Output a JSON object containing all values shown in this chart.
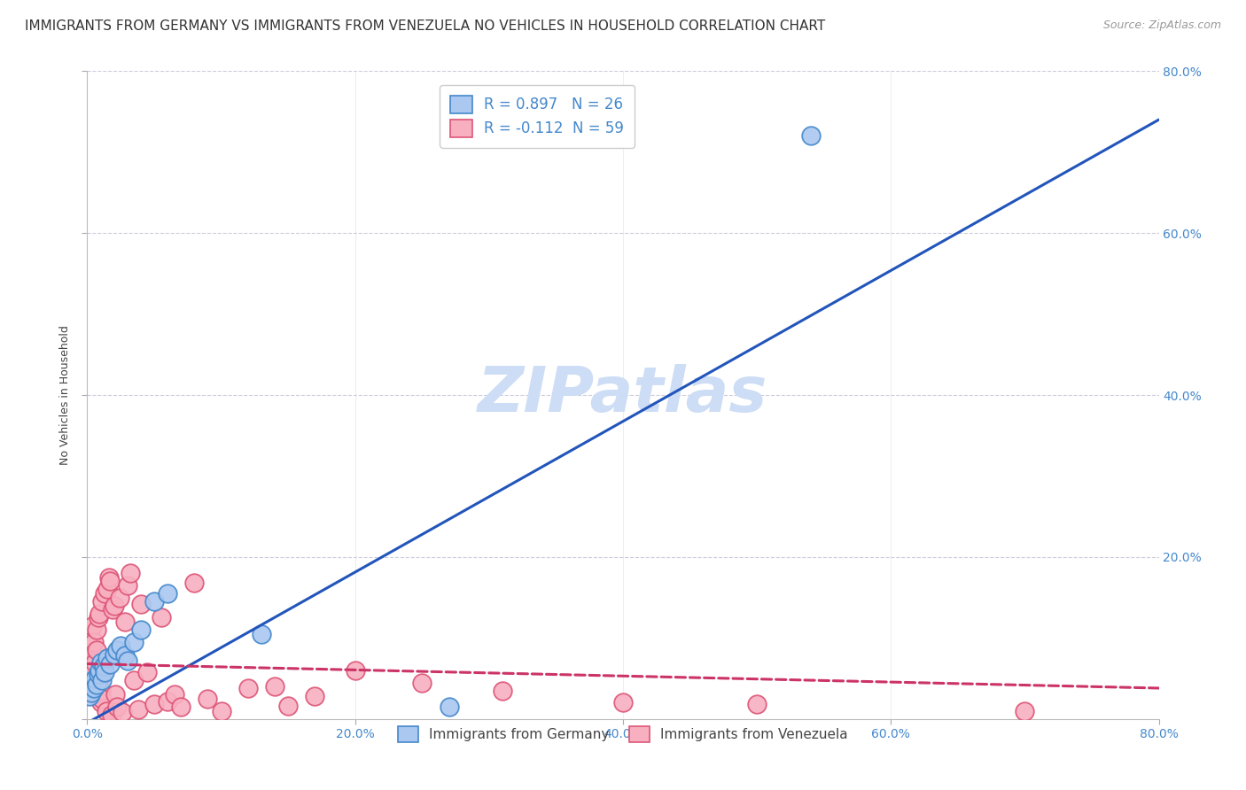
{
  "title": "IMMIGRANTS FROM GERMANY VS IMMIGRANTS FROM VENEZUELA NO VEHICLES IN HOUSEHOLD CORRELATION CHART",
  "source": "Source: ZipAtlas.com",
  "ylabel": "No Vehicles in Household",
  "xlim": [
    0.0,
    0.8
  ],
  "ylim": [
    0.0,
    0.8
  ],
  "ytick_positions": [
    0.0,
    0.2,
    0.4,
    0.6,
    0.8
  ],
  "ytick_labels": [
    "",
    "20.0%",
    "40.0%",
    "60.0%",
    "80.0%"
  ],
  "xtick_positions": [
    0.0,
    0.2,
    0.4,
    0.6,
    0.8
  ],
  "xtick_labels": [
    "0.0%",
    "20.0%",
    "40.0%",
    "60.0%",
    "80.0%"
  ],
  "germany_color": "#aac8f0",
  "germany_edge_color": "#4488cc",
  "venezuela_color": "#f8b0c0",
  "venezuela_edge_color": "#dd5577",
  "germany_line_color": "#2255bb",
  "venezuela_line_color": "#cc3366",
  "R_germany": 0.897,
  "N_germany": 26,
  "R_venezuela": -0.112,
  "N_venezuela": 59,
  "watermark": "ZIPatlas",
  "watermark_color": "#ccddf5",
  "legend_label_germany": "Immigrants from Germany",
  "legend_label_venezuela": "Immigrants from Venezuela",
  "grid_color": "#ccccdd",
  "background_color": "#ffffff",
  "title_fontsize": 11,
  "axis_label_fontsize": 9,
  "tick_fontsize": 10,
  "source_fontsize": 9,
  "watermark_fontsize": 52,
  "tick_color": "#4488cc",
  "germany_x": [
    0.002,
    0.003,
    0.004,
    0.005,
    0.006,
    0.007,
    0.008,
    0.009,
    0.01,
    0.011,
    0.012,
    0.013,
    0.015,
    0.017,
    0.02,
    0.022,
    0.025,
    0.028,
    0.03,
    0.035,
    0.04,
    0.05,
    0.06,
    0.13,
    0.27,
    0.54
  ],
  "germany_y": [
    0.028,
    0.032,
    0.045,
    0.038,
    0.05,
    0.042,
    0.055,
    0.06,
    0.07,
    0.048,
    0.065,
    0.058,
    0.075,
    0.068,
    0.08,
    0.085,
    0.09,
    0.078,
    0.072,
    0.095,
    0.11,
    0.145,
    0.155,
    0.105,
    0.015,
    0.72
  ],
  "venezuela_x": [
    0.001,
    0.002,
    0.002,
    0.003,
    0.003,
    0.004,
    0.004,
    0.005,
    0.005,
    0.006,
    0.006,
    0.007,
    0.007,
    0.008,
    0.008,
    0.009,
    0.009,
    0.01,
    0.01,
    0.011,
    0.011,
    0.012,
    0.013,
    0.014,
    0.015,
    0.016,
    0.017,
    0.018,
    0.019,
    0.02,
    0.021,
    0.022,
    0.024,
    0.026,
    0.028,
    0.03,
    0.032,
    0.035,
    0.038,
    0.04,
    0.045,
    0.05,
    0.055,
    0.06,
    0.065,
    0.07,
    0.08,
    0.09,
    0.1,
    0.12,
    0.14,
    0.15,
    0.17,
    0.2,
    0.25,
    0.31,
    0.4,
    0.5,
    0.7
  ],
  "venezuela_y": [
    0.055,
    0.075,
    0.09,
    0.1,
    0.068,
    0.082,
    0.115,
    0.095,
    0.06,
    0.07,
    0.045,
    0.085,
    0.11,
    0.125,
    0.04,
    0.13,
    0.05,
    0.02,
    0.035,
    0.025,
    0.145,
    0.065,
    0.155,
    0.01,
    0.16,
    0.175,
    0.17,
    0.005,
    0.135,
    0.14,
    0.03,
    0.015,
    0.15,
    0.008,
    0.12,
    0.165,
    0.18,
    0.048,
    0.012,
    0.142,
    0.058,
    0.018,
    0.125,
    0.022,
    0.03,
    0.015,
    0.168,
    0.025,
    0.01,
    0.038,
    0.04,
    0.016,
    0.028,
    0.06,
    0.045,
    0.035,
    0.02,
    0.018,
    0.01
  ],
  "germany_line_x": [
    0.0,
    0.8
  ],
  "germany_line_y": [
    -0.005,
    0.74
  ],
  "venezuela_line_x": [
    0.0,
    0.8
  ],
  "venezuela_line_y": [
    0.068,
    0.038
  ]
}
